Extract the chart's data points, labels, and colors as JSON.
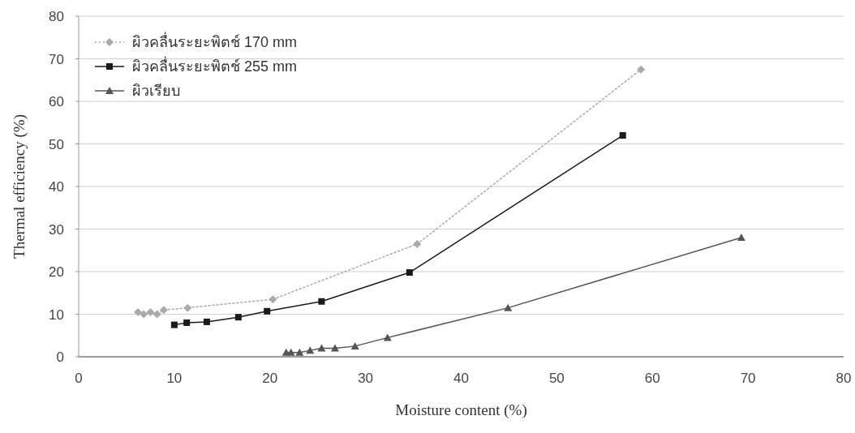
{
  "chart_data": {
    "type": "line",
    "xlabel": "Moisture content (%)",
    "ylabel": "Thermal efficiency (%)",
    "xlim": [
      0,
      80
    ],
    "xticks": [
      0,
      10,
      20,
      30,
      40,
      50,
      60,
      70,
      80
    ],
    "ylim": [
      0,
      80
    ],
    "yticks": [
      0,
      10,
      20,
      30,
      40,
      50,
      60,
      70,
      80
    ],
    "grid": "y",
    "legend": "top left",
    "series": [
      {
        "name": "ผิวคลื่นระยะพิตช์ 170 mm",
        "color": "#aaaaaa",
        "marker": "diamond",
        "line_style": "dotted",
        "x": [
          6.2,
          6.8,
          7.5,
          8.2,
          8.9,
          11.4,
          20.3,
          35.4,
          58.8
        ],
        "values": [
          10.5,
          10,
          10.5,
          10,
          11,
          11.5,
          13.5,
          26.5,
          67.5
        ]
      },
      {
        "name": "ผิวคลื่นระยะพิตช์ 255 mm",
        "color": "#1a1a1a",
        "marker": "square",
        "line_style": "solid",
        "x": [
          10,
          11.3,
          13.4,
          16.7,
          19.7,
          25.4,
          34.6,
          56.9
        ],
        "values": [
          7.5,
          8,
          8.2,
          9.3,
          10.7,
          13,
          19.8,
          52
        ]
      },
      {
        "name": "ผิวเรียบ",
        "color": "#555555",
        "marker": "triangle",
        "line_style": "solid",
        "x": [
          21.7,
          22.2,
          23.1,
          24.2,
          25.4,
          26.8,
          28.9,
          32.3,
          44.9,
          69.3
        ],
        "values": [
          1,
          1,
          1,
          1.5,
          2,
          2,
          2.5,
          4.5,
          11.5,
          28
        ]
      }
    ]
  }
}
